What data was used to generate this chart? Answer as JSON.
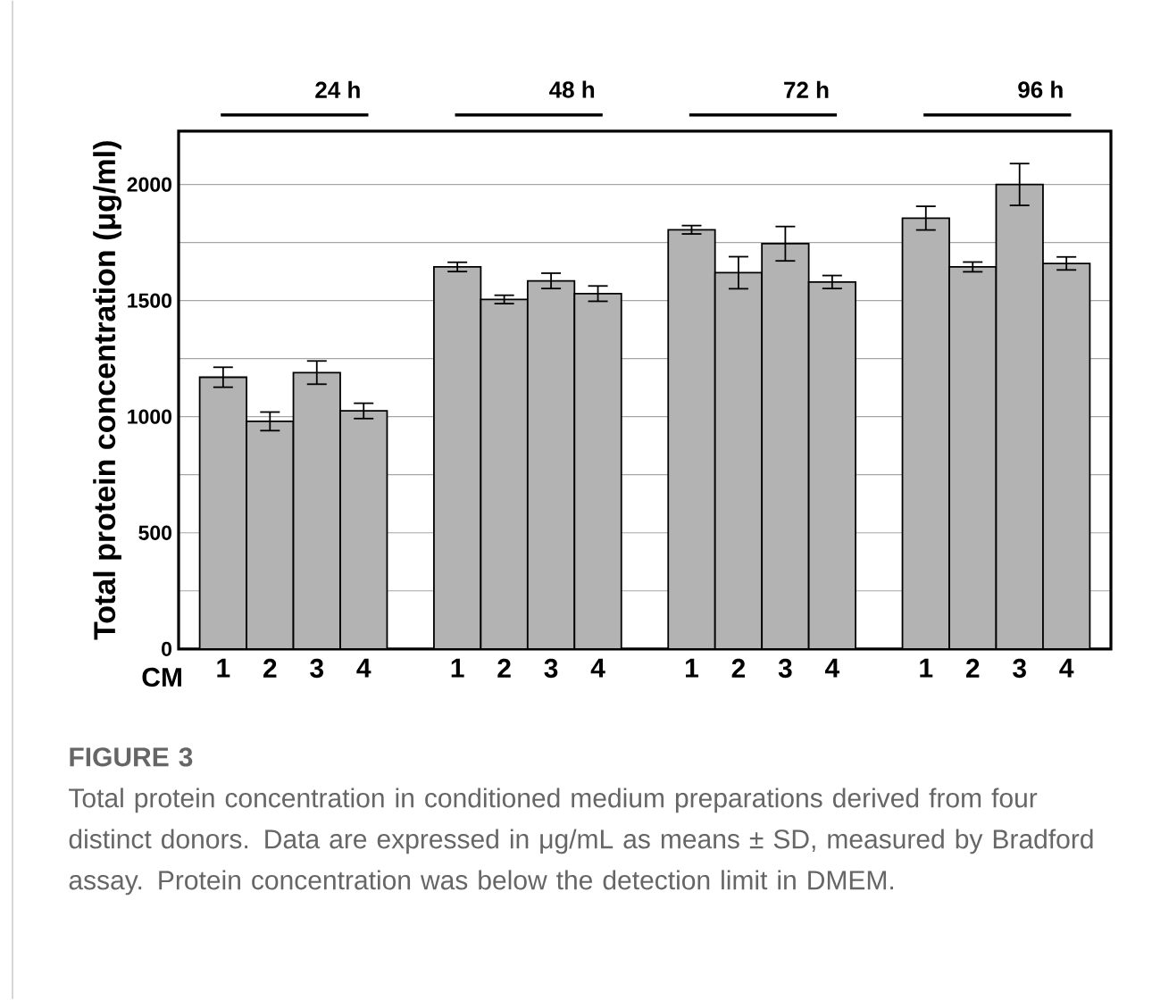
{
  "chart_data": {
    "type": "bar",
    "title": "FIGURE 3",
    "subtitle": "Total protein concentration in conditioned medium preparations derived from four distinct donors. Data are expressed in μg/mL as means ± SD, measured by Bradford assay. Protein concentration was below the detection limit in DMEM.",
    "xlabel": "CM",
    "ylabel": "Total protein concentration (μg/ml)",
    "categories": [
      "1",
      "2",
      "3",
      "4",
      "1",
      "2",
      "3",
      "4",
      "1",
      "2",
      "3",
      "4",
      "1",
      "2",
      "3",
      "4"
    ],
    "values": [
      1170,
      980,
      1190,
      1025,
      1645,
      1505,
      1585,
      1530,
      1805,
      1620,
      1745,
      1580,
      1855,
      1645,
      2000,
      1660
    ],
    "errors": [
      43,
      40,
      50,
      33,
      20,
      18,
      33,
      33,
      18,
      69,
      74,
      28,
      51,
      21,
      90,
      28
    ],
    "color": "#b3b3b3",
    "ylim": [
      0,
      2230
    ],
    "yticks": [
      0,
      {
        "value": 250,
        "label": null
      },
      500,
      {
        "value": 750,
        "label": null
      },
      1000,
      {
        "value": 1250,
        "label": null
      },
      1500,
      {
        "value": 1750,
        "label": null
      },
      2000
    ],
    "grid": "y",
    "annotations": [
      "24 h",
      "48 h",
      "72 h",
      "96 h"
    ]
  }
}
